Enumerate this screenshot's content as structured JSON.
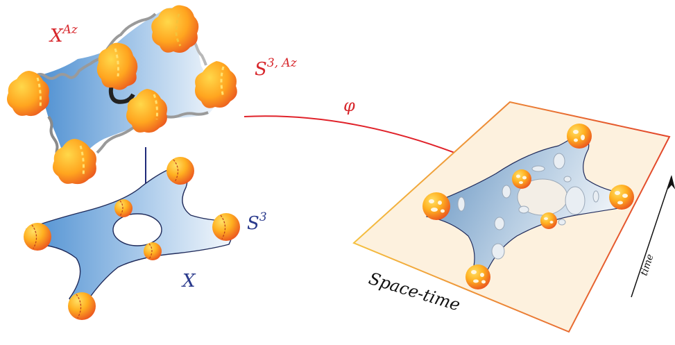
{
  "labels": {
    "x_az_base": "X",
    "x_az_sup": "Az",
    "s3az_base": "S",
    "s3az_sup": "3, Az",
    "s3_base": "S",
    "s3_sup": "3",
    "x": "X",
    "phi": "φ",
    "spacetime": "Space-time",
    "time": "time"
  },
  "colors": {
    "red_label": "#d7262b",
    "blue_label": "#2a3a8c",
    "arrow_red": "#e0222a",
    "arrow_blue": "#1f2a7a",
    "plane_fill": "#fdf1de",
    "plane_edge_start": "#f5c140",
    "plane_edge_end": "#e2452a"
  }
}
